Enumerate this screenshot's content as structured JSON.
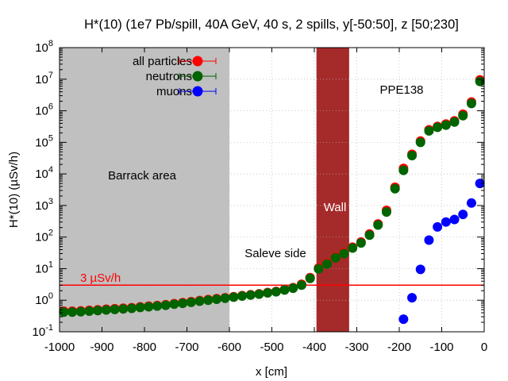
{
  "chart_data": {
    "type": "scatter",
    "title": "H*(10) (1e7 Pb/spill, 40A GeV, 40 s, 2 spills, y[-50:50], z [50;230]",
    "xlabel": "x [cm]",
    "ylabel": "H*(10) (µSv/h)",
    "xlim": [
      -1000,
      0
    ],
    "ylim": [
      0.1,
      100000000
    ],
    "y_scale": "log",
    "grid": true,
    "legend_position": "top-left",
    "x_ticks": [
      "-1000",
      "-900",
      "-800",
      "-700",
      "-600",
      "-500",
      "-400",
      "-300",
      "-200",
      "-100",
      "0"
    ],
    "x_tick_values": [
      -1000,
      -900,
      -800,
      -700,
      -600,
      -500,
      -400,
      -300,
      -200,
      -100,
      0
    ],
    "y_tick_exponents": [
      -1,
      0,
      1,
      2,
      3,
      4,
      5,
      6,
      7,
      8
    ],
    "y_tick_base": "10",
    "series": [
      {
        "name": "all particles",
        "color": "#ff0000",
        "x": [
          -990,
          -970,
          -950,
          -930,
          -910,
          -890,
          -870,
          -850,
          -830,
          -810,
          -790,
          -770,
          -750,
          -730,
          -710,
          -690,
          -670,
          -650,
          -630,
          -610,
          -590,
          -570,
          -550,
          -530,
          -510,
          -490,
          -470,
          -450,
          -430,
          -410,
          -390,
          -370,
          -350,
          -330,
          -310,
          -290,
          -270,
          -250,
          -230,
          -210,
          -190,
          -170,
          -150,
          -130,
          -110,
          -90,
          -70,
          -50,
          -30,
          -10
        ],
        "y": [
          0.45,
          0.45,
          0.46,
          0.48,
          0.5,
          0.52,
          0.54,
          0.56,
          0.58,
          0.62,
          0.65,
          0.68,
          0.72,
          0.78,
          0.84,
          0.9,
          0.98,
          1.05,
          1.12,
          1.2,
          1.3,
          1.4,
          1.5,
          1.6,
          1.75,
          1.9,
          2.2,
          2.5,
          3.2,
          5.2,
          10.5,
          15,
          23,
          32,
          48,
          70,
          125,
          260,
          700,
          3800,
          15000,
          42000,
          110000,
          250000,
          320000,
          380000,
          480000,
          780000,
          1900000,
          9500000
        ]
      },
      {
        "name": "neutrons",
        "color": "#006400",
        "x": [
          -990,
          -970,
          -950,
          -930,
          -910,
          -890,
          -870,
          -850,
          -830,
          -810,
          -790,
          -770,
          -750,
          -730,
          -710,
          -690,
          -670,
          -650,
          -630,
          -610,
          -590,
          -570,
          -550,
          -530,
          -510,
          -490,
          -470,
          -450,
          -430,
          -410,
          -390,
          -370,
          -350,
          -330,
          -310,
          -290,
          -270,
          -250,
          -230,
          -210,
          -190,
          -170,
          -150,
          -130,
          -110,
          -90,
          -70,
          -50,
          -30,
          -10
        ],
        "y": [
          0.42,
          0.42,
          0.43,
          0.45,
          0.47,
          0.49,
          0.51,
          0.53,
          0.55,
          0.59,
          0.62,
          0.65,
          0.69,
          0.75,
          0.8,
          0.86,
          0.93,
          1.0,
          1.07,
          1.15,
          1.25,
          1.35,
          1.45,
          1.55,
          1.7,
          1.85,
          2.1,
          2.4,
          3.0,
          4.9,
          9.8,
          14,
          22,
          30,
          45,
          65,
          115,
          240,
          620,
          3400,
          13000,
          38000,
          100000,
          230000,
          300000,
          350000,
          440000,
          700000,
          1700000,
          8500000
        ]
      },
      {
        "name": "muons",
        "color": "#0000ff",
        "x": [
          -190,
          -170,
          -150,
          -130,
          -110,
          -90,
          -70,
          -50,
          -30,
          -10
        ],
        "y": [
          0.25,
          1.2,
          9.5,
          80,
          210,
          300,
          360,
          520,
          1200,
          5000
        ]
      }
    ],
    "regions": [
      {
        "label": "Barrack area",
        "x": [
          -1000,
          -600
        ],
        "color": "#c0c0c0"
      },
      {
        "label": "Wall",
        "x": [
          -395,
          -318
        ],
        "color": "#a52a2a"
      }
    ],
    "reference_line": {
      "label": "3 µSv/h",
      "y": 3,
      "color": "#ff0000"
    },
    "annotations": [
      {
        "text": "Saleve side"
      },
      {
        "text": "PPE138"
      }
    ]
  }
}
